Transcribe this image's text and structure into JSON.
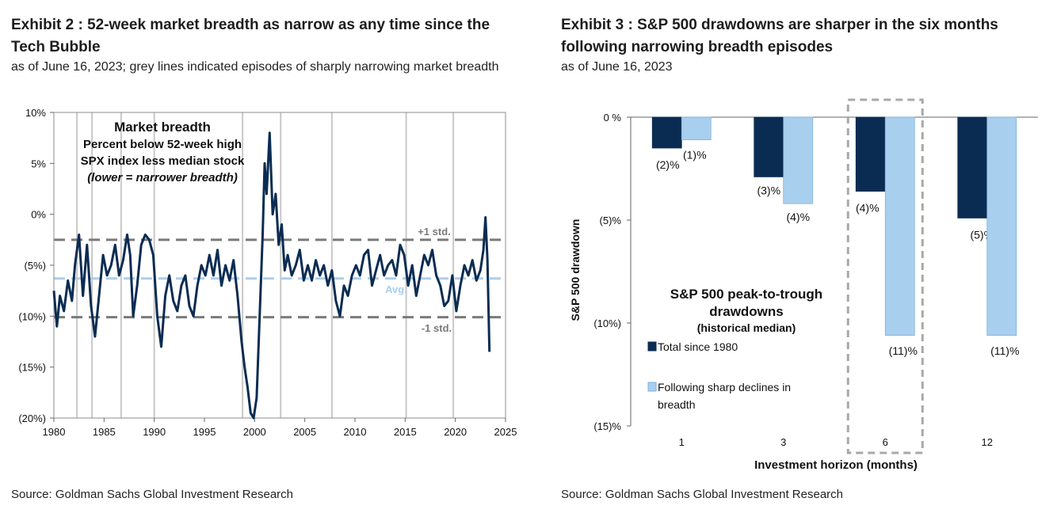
{
  "left": {
    "title": "Exhibit 2 : 52-week market breadth as narrow as any time since the Tech Bubble",
    "subtitle": "as of June 16, 2023; grey lines indicated episodes of sharply narrowing market breadth",
    "source": "Source: Goldman Sachs Global Investment Research",
    "annotation": {
      "line1": "Market breadth",
      "line2": "Percent below 52-week high",
      "line3": "SPX index less median stock",
      "line4": "(lower = narrower breadth)"
    },
    "ref_labels": {
      "plus1": "+1 std.",
      "avg": "Avg.",
      "minus1": "-1 std."
    }
  },
  "right": {
    "title": "Exhibit 3 : S&P 500 drawdowns are sharper in the six months following narrowing breadth episodes",
    "subtitle": "as of June 16, 2023",
    "source": "Source: Goldman Sachs Global Investment Research",
    "annotation": {
      "line1": "S&P 500 peak-to-trough",
      "line2": "drawdowns",
      "line3": "(historical median)"
    }
  },
  "colors": {
    "navy": "#0b2c52",
    "lightblue": "#a9cfee",
    "avgline": "#a9cfee",
    "stdline": "#7a7a7a",
    "episode": "#c8c8c8"
  },
  "chart_data": [
    {
      "type": "line",
      "x_range": [
        1980,
        2025
      ],
      "xticks": [
        "1980",
        "1985",
        "1990",
        "1995",
        "2000",
        "2005",
        "2010",
        "2015",
        "2020",
        "2025"
      ],
      "ylim": [
        -20,
        10
      ],
      "yticks": [
        {
          "value": 10,
          "label": "10%"
        },
        {
          "value": 5,
          "label": "5%"
        },
        {
          "value": 0,
          "label": "0%"
        },
        {
          "value": -5,
          "label": "(5%)"
        },
        {
          "value": -10,
          "label": "(10%)"
        },
        {
          "value": -15,
          "label": "(15%)"
        },
        {
          "value": -20,
          "label": "(20%)"
        }
      ],
      "reference_lines": {
        "plus1_std": -2.5,
        "avg": -6.3,
        "minus1_std": -10.1
      },
      "episode_years": [
        1982.3,
        1983.8,
        1986.7,
        1990.0,
        1998.8,
        2002.6,
        2007.7,
        2015.1,
        2019.8
      ],
      "grid": false,
      "series": [
        {
          "x": [
            1980.0,
            1980.3,
            1980.6,
            1981.0,
            1981.4,
            1981.8,
            1982.1,
            1982.5,
            1982.9,
            1983.3,
            1983.7,
            1984.1,
            1984.5,
            1984.9,
            1985.3,
            1985.7,
            1986.1,
            1986.5,
            1986.9,
            1987.3,
            1987.6,
            1987.9,
            1988.3,
            1988.7,
            1989.1,
            1989.5,
            1989.9,
            1990.3,
            1990.7,
            1991.1,
            1991.5,
            1991.9,
            1992.3,
            1992.7,
            1993.1,
            1993.5,
            1993.9,
            1994.3,
            1994.7,
            1995.1,
            1995.5,
            1995.9,
            1996.3,
            1996.7,
            1997.1,
            1997.5,
            1997.9,
            1998.3,
            1998.7,
            1999.0,
            1999.3,
            1999.6,
            1999.9,
            2000.2,
            2000.5,
            2000.8,
            2001.0,
            2001.2,
            2001.5,
            2001.8,
            2002.1,
            2002.4,
            2002.7,
            2003.0,
            2003.3,
            2003.7,
            2004.1,
            2004.5,
            2004.9,
            2005.3,
            2005.7,
            2006.1,
            2006.5,
            2006.9,
            2007.3,
            2007.7,
            2008.1,
            2008.5,
            2008.9,
            2009.3,
            2009.7,
            2010.1,
            2010.5,
            2010.9,
            2011.3,
            2011.7,
            2012.1,
            2012.5,
            2012.9,
            2013.3,
            2013.7,
            2014.1,
            2014.5,
            2014.9,
            2015.3,
            2015.7,
            2016.1,
            2016.5,
            2016.9,
            2017.3,
            2017.7,
            2018.1,
            2018.5,
            2018.9,
            2019.3,
            2019.7,
            2020.1,
            2020.5,
            2020.9,
            2021.3,
            2021.7,
            2022.1,
            2022.5,
            2022.8,
            2023.0,
            2023.2,
            2023.4
          ],
          "y": [
            -7.5,
            -11.0,
            -8.0,
            -9.5,
            -6.5,
            -8.5,
            -5.0,
            -2.0,
            -8.0,
            -3.0,
            -9.0,
            -12.0,
            -8.0,
            -4.0,
            -6.0,
            -5.0,
            -3.0,
            -6.0,
            -4.5,
            -2.0,
            -4.0,
            -10.0,
            -7.0,
            -3.0,
            -2.0,
            -2.5,
            -4.0,
            -10.0,
            -13.0,
            -8.0,
            -6.0,
            -8.5,
            -9.5,
            -7.0,
            -6.0,
            -9.0,
            -10.0,
            -7.0,
            -5.0,
            -6.0,
            -4.0,
            -6.0,
            -3.5,
            -7.0,
            -5.0,
            -6.5,
            -4.5,
            -8.0,
            -12.5,
            -15.0,
            -17.0,
            -19.5,
            -20.0,
            -18.0,
            -10.0,
            -2.0,
            5.0,
            2.0,
            8.0,
            0.0,
            2.0,
            -3.0,
            -1.0,
            -5.5,
            -4.0,
            -6.0,
            -5.0,
            -3.5,
            -6.5,
            -5.0,
            -6.5,
            -4.5,
            -6.0,
            -5.0,
            -7.0,
            -5.5,
            -8.5,
            -10.0,
            -7.0,
            -8.0,
            -6.0,
            -5.0,
            -6.0,
            -4.0,
            -3.5,
            -7.0,
            -5.5,
            -4.0,
            -6.0,
            -5.0,
            -4.5,
            -6.0,
            -3.0,
            -4.0,
            -7.0,
            -5.0,
            -8.0,
            -6.0,
            -4.0,
            -5.0,
            -3.5,
            -6.0,
            -7.0,
            -9.0,
            -8.5,
            -6.0,
            -9.5,
            -7.0,
            -5.0,
            -6.0,
            -4.5,
            -6.5,
            -5.5,
            -3.5,
            -0.3,
            -4.5,
            -13.5
          ]
        }
      ]
    },
    {
      "type": "bar",
      "categories": [
        "1",
        "3",
        "6",
        "12"
      ],
      "xlabel": "Investment horizon (months)",
      "ylabel": "S&P 500 drawdown",
      "ylim": [
        -15,
        0
      ],
      "yticks": [
        {
          "value": 0,
          "label": "0 %"
        },
        {
          "value": -5,
          "label": "(5)%"
        },
        {
          "value": -10,
          "label": "(10%)"
        },
        {
          "value": -15,
          "label": "(15)%"
        }
      ],
      "legend_position": "center-left",
      "highlight_category": "6",
      "series": [
        {
          "name": "Total since 1980",
          "values": [
            -1.5,
            -2.9,
            -3.6,
            -4.9
          ],
          "labels": [
            "(2)%",
            "(3)%",
            "(4)%",
            "(5)%"
          ]
        },
        {
          "name": "Following sharp declines in breadth",
          "values": [
            -1.1,
            -4.2,
            -10.6,
            -10.6
          ],
          "labels": [
            "(1)%",
            "(4)%",
            "(11)%",
            "(11)%"
          ]
        }
      ]
    }
  ]
}
